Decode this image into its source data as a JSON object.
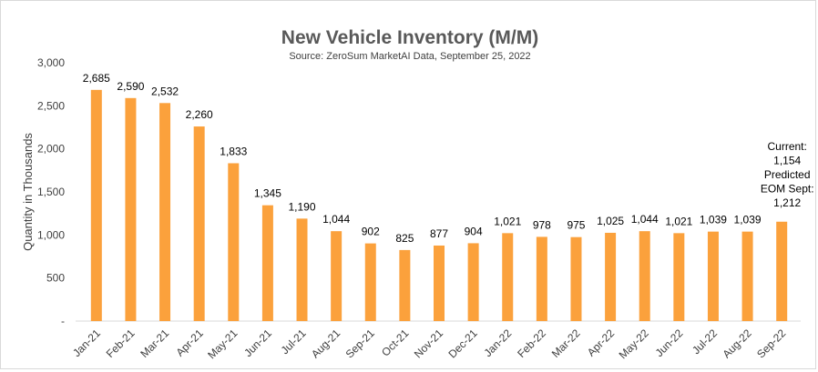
{
  "chart_data": {
    "type": "bar",
    "title": "New Vehicle Inventory (M/M)",
    "subtitle": "Source: ZeroSum MarketAI Data, September 25, 2022",
    "xlabel": "",
    "ylabel": "Quantity in Thousands",
    "ylim": [
      0,
      3000
    ],
    "yticks": [
      "-",
      "500",
      "1,000",
      "1,500",
      "2,000",
      "2,500",
      "3,000"
    ],
    "grid": false,
    "bar_color": "#FBA13C",
    "categories": [
      "Jan-21",
      "Feb-21",
      "Mar-21",
      "Apr-21",
      "May-21",
      "Jun-21",
      "Jul-21",
      "Aug-21",
      "Sep-21",
      "Oct-21",
      "Nov-21",
      "Dec-21",
      "Jan-22",
      "Feb-22",
      "Mar-22",
      "Apr-22",
      "May-22",
      "Jun-22",
      "Jul-22",
      "Aug-22",
      "Sep-22"
    ],
    "values": [
      2685,
      2590,
      2532,
      2260,
      1833,
      1345,
      1190,
      1044,
      902,
      825,
      877,
      904,
      1021,
      978,
      975,
      1025,
      1044,
      1021,
      1039,
      1039,
      1154
    ],
    "labels": [
      "2,685",
      "2,590",
      "2,532",
      "2,260",
      "1,833",
      "1,345",
      "1,190",
      "1,044",
      "902",
      "825",
      "877",
      "904",
      "1,021",
      "978",
      "975",
      "1,025",
      "1,044",
      "1,021",
      "1,039",
      "1,039",
      ""
    ],
    "annotation": [
      "Current:",
      "1,154",
      "Predicted",
      "EOM Sept:",
      "1,212"
    ]
  }
}
